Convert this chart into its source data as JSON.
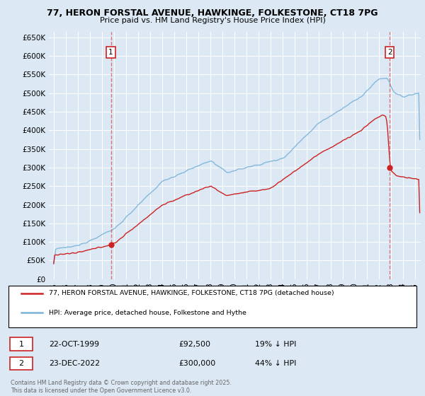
{
  "title": "77, HERON FORSTAL AVENUE, HAWKINGE, FOLKESTONE, CT18 7PG",
  "subtitle": "Price paid vs. HM Land Registry's House Price Index (HPI)",
  "bg_color": "#dce9f5",
  "plot_bg_color": "#dce9f5",
  "bottom_bg_color": "#ffffff",
  "grid_color": "#ffffff",
  "hpi_color": "#7ab3d9",
  "price_color": "#cc2222",
  "dashed_color": "#e06060",
  "ymin": 0,
  "ymax": 650000,
  "yticks": [
    0,
    50000,
    100000,
    150000,
    200000,
    250000,
    300000,
    350000,
    400000,
    450000,
    500000,
    550000,
    600000,
    650000
  ],
  "marker1_label": "22-OCT-1999",
  "marker1_price": "£92,500",
  "marker1_note": "19% ↓ HPI",
  "marker2_label": "23-DEC-2022",
  "marker2_price": "£300,000",
  "marker2_note": "44% ↓ HPI",
  "footer": "Contains HM Land Registry data © Crown copyright and database right 2025.\nThis data is licensed under the Open Government Licence v3.0.",
  "legend1": "77, HERON FORSTAL AVENUE, HAWKINGE, FOLKESTONE, CT18 7PG (detached house)",
  "legend2": "HPI: Average price, detached house, Folkestone and Hythe"
}
